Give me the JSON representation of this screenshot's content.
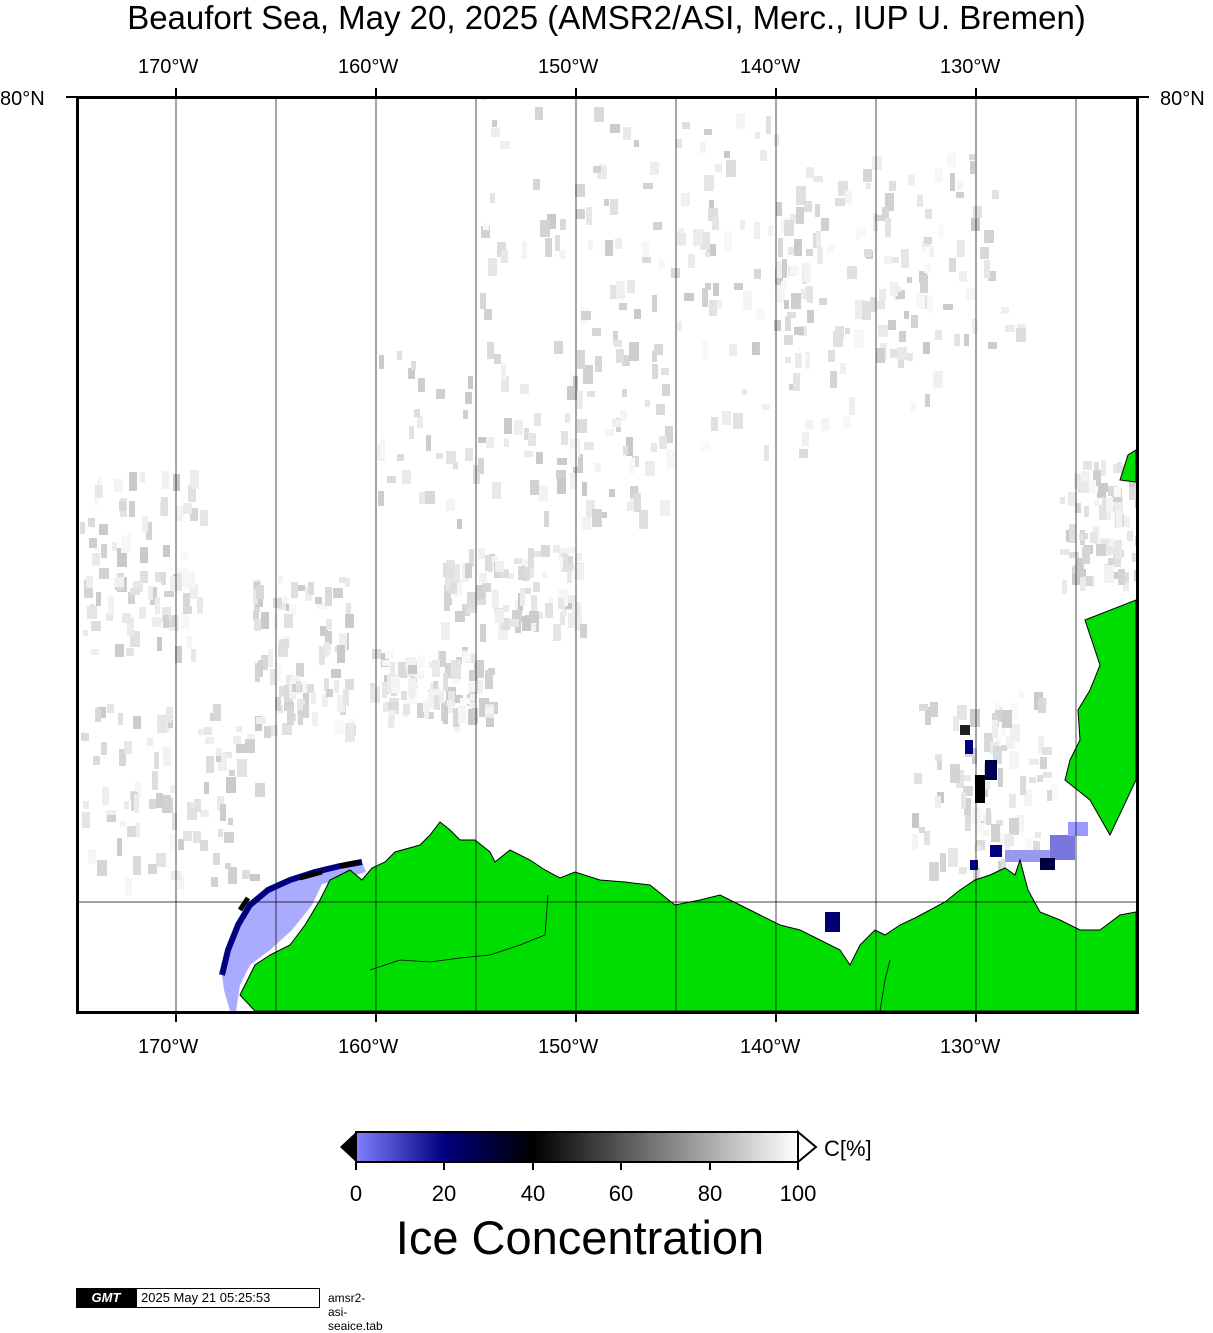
{
  "title": "Beaufort Sea, May 20, 2025 (AMSR2/ASI, Merc., IUP U. Bremen)",
  "map": {
    "lon_labels": [
      "170°W",
      "160°W",
      "150°W",
      "140°W",
      "130°W"
    ],
    "lat_label": "80°N",
    "colors": {
      "land": "#00dd00",
      "coast": "#000000",
      "grid": "#000000",
      "background": "#ffffff"
    }
  },
  "colorbar": {
    "ticks": [
      "0",
      "20",
      "40",
      "60",
      "80",
      "100"
    ],
    "unit": "C[%]",
    "title": "Ice Concentration",
    "gradient_colors": [
      "#8080ff",
      "#000080",
      "#000000",
      "#808080",
      "#ffffff"
    ]
  },
  "footer": {
    "logo": "GMT",
    "timestamp": "2025 May 21 05:25:53",
    "file": "amsr2-asi-seaice.tab"
  }
}
